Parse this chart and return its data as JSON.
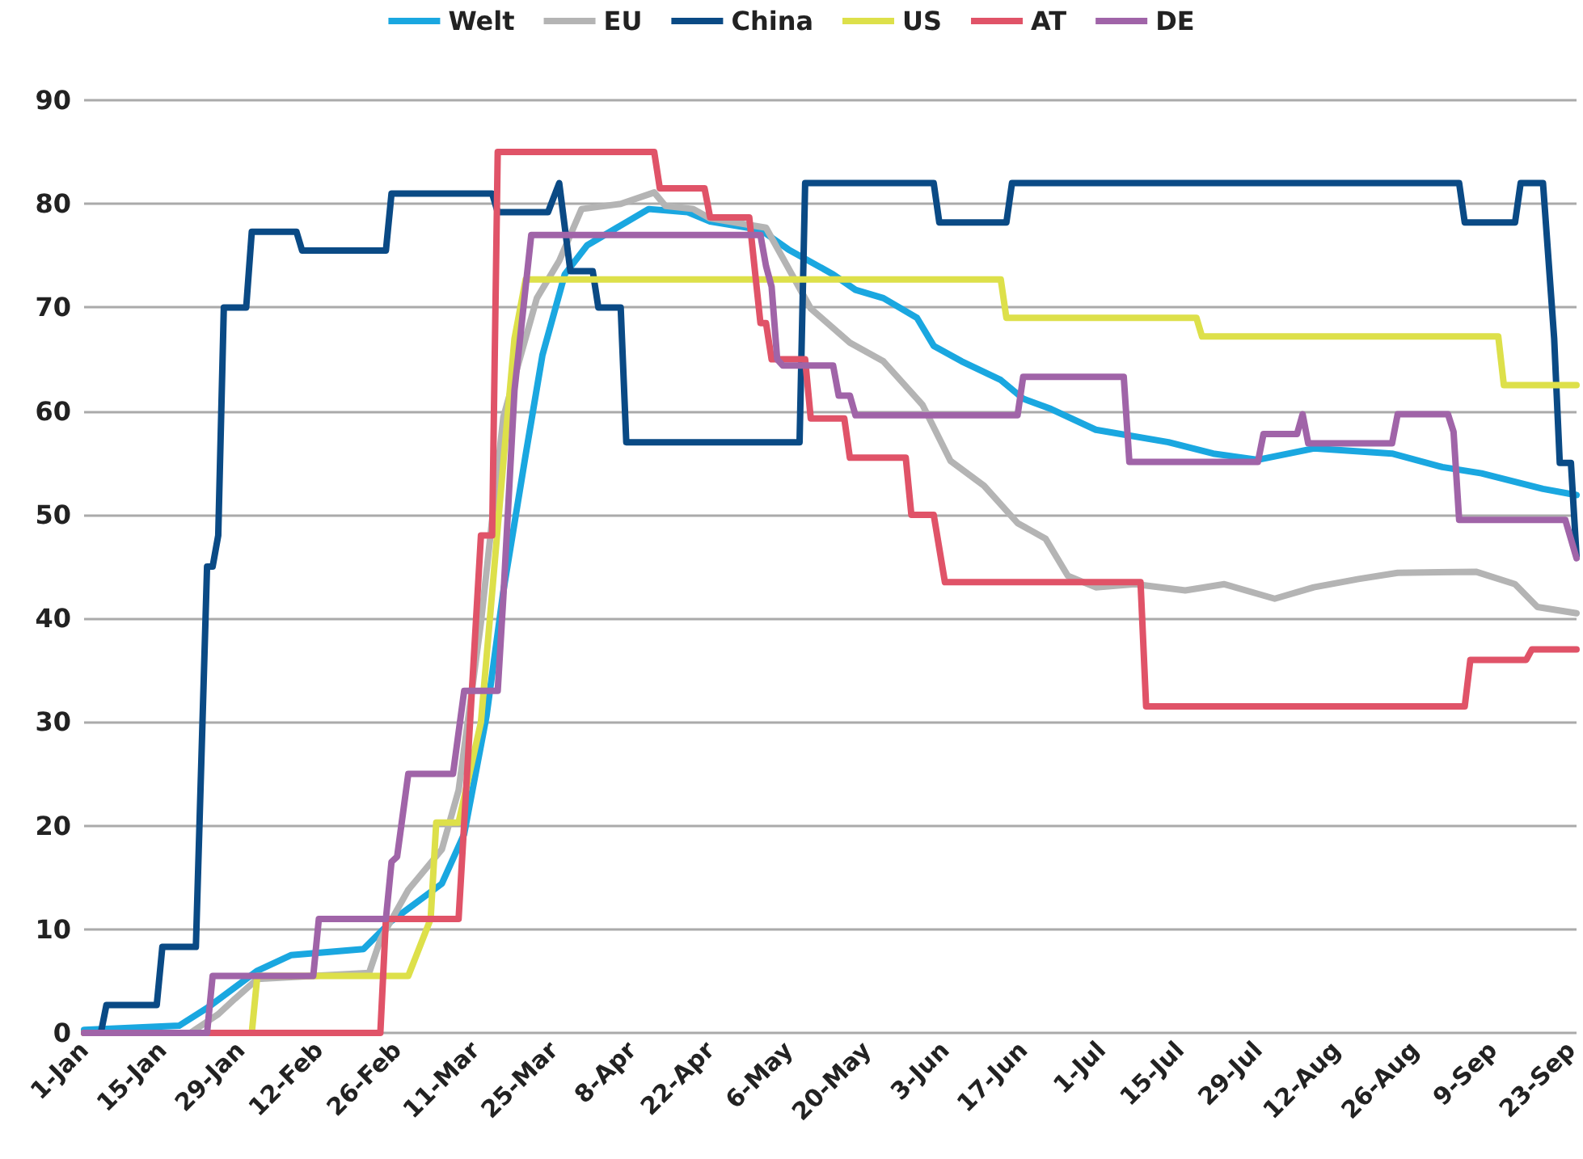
{
  "chart_data": {
    "type": "line",
    "legend": "top",
    "grid": "y",
    "marker": "none",
    "line_style": "solid",
    "xlim": [
      "--01-01",
      "--09-24"
    ],
    "xticks": [
      {
        "value": "--01-01",
        "label": "1-Jan"
      },
      {
        "value": "--01-15",
        "label": "15-Jan"
      },
      {
        "value": "--01-29",
        "label": "29-Jan"
      },
      {
        "value": "--02-12",
        "label": "12-Feb"
      },
      {
        "value": "--02-26",
        "label": "26-Feb"
      },
      {
        "value": "--03-11",
        "label": "11-Mar"
      },
      {
        "value": "--03-25",
        "label": "25-Mar"
      },
      {
        "value": "--04-08",
        "label": "8-Apr"
      },
      {
        "value": "--04-22",
        "label": "22-Apr"
      },
      {
        "value": "--05-06",
        "label": "6-May"
      },
      {
        "value": "--05-20",
        "label": "20-May"
      },
      {
        "value": "--06-03",
        "label": "3-Jun"
      },
      {
        "value": "--06-17",
        "label": "17-Jun"
      },
      {
        "value": "--07-01",
        "label": "1-Jul"
      },
      {
        "value": "--07-15",
        "label": "15-Jul"
      },
      {
        "value": "--07-29",
        "label": "29-Jul"
      },
      {
        "value": "--08-12",
        "label": "12-Aug"
      },
      {
        "value": "--08-26",
        "label": "26-Aug"
      },
      {
        "value": "--09-09",
        "label": "9-Sep"
      },
      {
        "value": "--09-23",
        "label": "23-Sep"
      }
    ],
    "ylim": [
      0,
      90
    ],
    "yticks": [
      0,
      10,
      20,
      30,
      40,
      50,
      60,
      70,
      80,
      90
    ],
    "series": [
      {
        "name": "Welt",
        "color": "#1aa7e0",
        "x": [
          "--01-01",
          "--01-18",
          "--01-23",
          "--02-01",
          "--02-07",
          "--02-20",
          "--02-25",
          "--03-05",
          "--03-09",
          "--03-13",
          "--03-16",
          "--03-20",
          "--03-23",
          "--03-27",
          "--03-31",
          "--04-11",
          "--04-18",
          "--04-22",
          "--05-01",
          "--05-06",
          "--05-14",
          "--05-18",
          "--05-23",
          "--05-29",
          "--06-01",
          "--06-06",
          "--06-13",
          "--06-17",
          "--06-22",
          "--06-30",
          "--07-13",
          "--07-21",
          "--07-29",
          "--08-08",
          "--08-22",
          "--08-31",
          "--09-07",
          "--09-18",
          "--09-24"
        ],
        "values": [
          0.3,
          0.7,
          2.4,
          6,
          7.5,
          8.1,
          10.8,
          14.4,
          19.2,
          30.6,
          42.6,
          55.8,
          65.4,
          73.2,
          76,
          79.5,
          79.2,
          78.3,
          77.5,
          75.6,
          73.2,
          71.7,
          70.9,
          69,
          66.3,
          64.8,
          63,
          61.2,
          60.2,
          58.2,
          57,
          55.9,
          55.3,
          56.4,
          55.9,
          54.6,
          54,
          52.5,
          51.9
        ]
      },
      {
        "name": "EU",
        "color": "#b4b4b4",
        "x": [
          "--01-01",
          "--01-20",
          "--01-25",
          "--01-28",
          "--02-01",
          "--02-21",
          "--02-23",
          "--02-28",
          "--03-05",
          "--03-08",
          "--03-12",
          "--03-16",
          "--03-22",
          "--03-26",
          "--03-30",
          "--04-06",
          "--04-12",
          "--04-14",
          "--04-19",
          "--04-22",
          "--05-02",
          "--05-06",
          "--05-10",
          "--05-17",
          "--05-23",
          "--05-26",
          "--05-30",
          "--06-04",
          "--06-10",
          "--06-16",
          "--06-21",
          "--06-25",
          "--06-30",
          "--07-07",
          "--07-16",
          "--07-23",
          "--08-01",
          "--08-08",
          "--08-16",
          "--08-23",
          "--09-06",
          "--09-13",
          "--09-17",
          "--09-24"
        ],
        "values": [
          0,
          0,
          1.8,
          3.3,
          5.2,
          5.8,
          9,
          13.8,
          17.7,
          23.4,
          39.6,
          59.4,
          70.9,
          74.5,
          79.5,
          80,
          81.1,
          79.8,
          79.5,
          78.6,
          77.7,
          73.8,
          69.9,
          66.6,
          64.8,
          63,
          60.6,
          55.2,
          52.8,
          49.2,
          47.7,
          44.1,
          43,
          43.3,
          42.7,
          43.3,
          41.9,
          43,
          43.8,
          44.4,
          44.5,
          43.3,
          41.1,
          40.5
        ]
      },
      {
        "name": "China",
        "color": "#0a4a85",
        "x": [
          "--01-01",
          "--01-04",
          "--01-05",
          "--01-14",
          "--01-15",
          "--01-21",
          "--01-23",
          "--01-24",
          "--01-25",
          "--01-26",
          "--01-30",
          "--01-31",
          "--02-08",
          "--02-09",
          "--02-24",
          "--02-25",
          "--03-14",
          "--03-15",
          "--03-24",
          "--03-26",
          "--03-28",
          "--04-01",
          "--04-02",
          "--04-06",
          "--04-07",
          "--05-08",
          "--05-09",
          "--06-01",
          "--06-02",
          "--06-14",
          "--06-15",
          "--09-03",
          "--09-04",
          "--09-13",
          "--09-14",
          "--09-18",
          "--09-20",
          "--09-21",
          "--09-23",
          "--09-24"
        ],
        "values": [
          0,
          0,
          2.7,
          2.7,
          8.3,
          8.3,
          45,
          45,
          48,
          70,
          70,
          77.3,
          77.3,
          75.5,
          75.5,
          81,
          81,
          79.2,
          79.2,
          82,
          73.5,
          73.5,
          70,
          70,
          57,
          57,
          82,
          82,
          78.2,
          78.2,
          82,
          82,
          78.2,
          78.2,
          82,
          82,
          67,
          55,
          55,
          46
        ]
      },
      {
        "name": "US",
        "color": "#dde04a",
        "x": [
          "--01-01",
          "--01-31",
          "--02-01",
          "--02-28",
          "--03-03",
          "--03-04",
          "--03-08",
          "--03-12",
          "--03-16",
          "--03-18",
          "--03-20",
          "--06-13",
          "--06-14",
          "--07-18",
          "--07-19",
          "--09-10",
          "--09-11",
          "--09-24"
        ],
        "values": [
          0,
          0,
          5.5,
          5.5,
          11,
          20.3,
          20.3,
          30,
          55,
          67,
          72.7,
          72.7,
          69,
          69,
          67.2,
          67.2,
          62.5,
          62.5
        ]
      },
      {
        "name": "AT",
        "color": "#e05368",
        "x": [
          "--01-01",
          "--02-23",
          "--02-24",
          "--03-08",
          "--03-12",
          "--03-14",
          "--03-15",
          "--04-12",
          "--04-13",
          "--04-21",
          "--04-22",
          "--04-29",
          "--05-01",
          "--05-02",
          "--05-03",
          "--05-09",
          "--05-10",
          "--05-16",
          "--05-17",
          "--05-27",
          "--05-28",
          "--06-01",
          "--06-03",
          "--07-08",
          "--07-09",
          "--09-04",
          "--09-05",
          "--09-15",
          "--09-16",
          "--09-24"
        ],
        "values": [
          0,
          0,
          11,
          11,
          48,
          48,
          85,
          85,
          81.5,
          81.5,
          78.7,
          78.7,
          68.5,
          68.5,
          65,
          65,
          59.3,
          59.3,
          55.5,
          55.5,
          50,
          50,
          43.5,
          43.5,
          31.5,
          31.5,
          36,
          36,
          37,
          37
        ]
      },
      {
        "name": "DE",
        "color": "#a064a8",
        "x": [
          "--01-01",
          "--01-23",
          "--01-24",
          "--02-11",
          "--02-12",
          "--02-24",
          "--02-25",
          "--02-26",
          "--02-28",
          "--03-07",
          "--03-09",
          "--03-15",
          "--03-16",
          "--03-18",
          "--03-21",
          "--05-01",
          "--05-02",
          "--05-03",
          "--05-04",
          "--05-05",
          "--05-14",
          "--05-15",
          "--05-17",
          "--05-18",
          "--06-16",
          "--06-17",
          "--07-05",
          "--07-06",
          "--07-29",
          "--07-30",
          "--08-05",
          "--08-06",
          "--08-07",
          "--08-22",
          "--08-23",
          "--09-01",
          "--09-02",
          "--09-03",
          "--09-22",
          "--09-24"
        ],
        "values": [
          0,
          0,
          5.5,
          5.5,
          11,
          11,
          16.5,
          17,
          25,
          25,
          33,
          33,
          42,
          62,
          77,
          77,
          74,
          72,
          65,
          64.4,
          64.4,
          61.5,
          61.5,
          59.6,
          59.6,
          63.3,
          63.3,
          55.1,
          55.1,
          57.8,
          57.8,
          59.7,
          56.9,
          56.9,
          59.7,
          59.7,
          58,
          49.5,
          49.5,
          45.8
        ]
      }
    ]
  }
}
